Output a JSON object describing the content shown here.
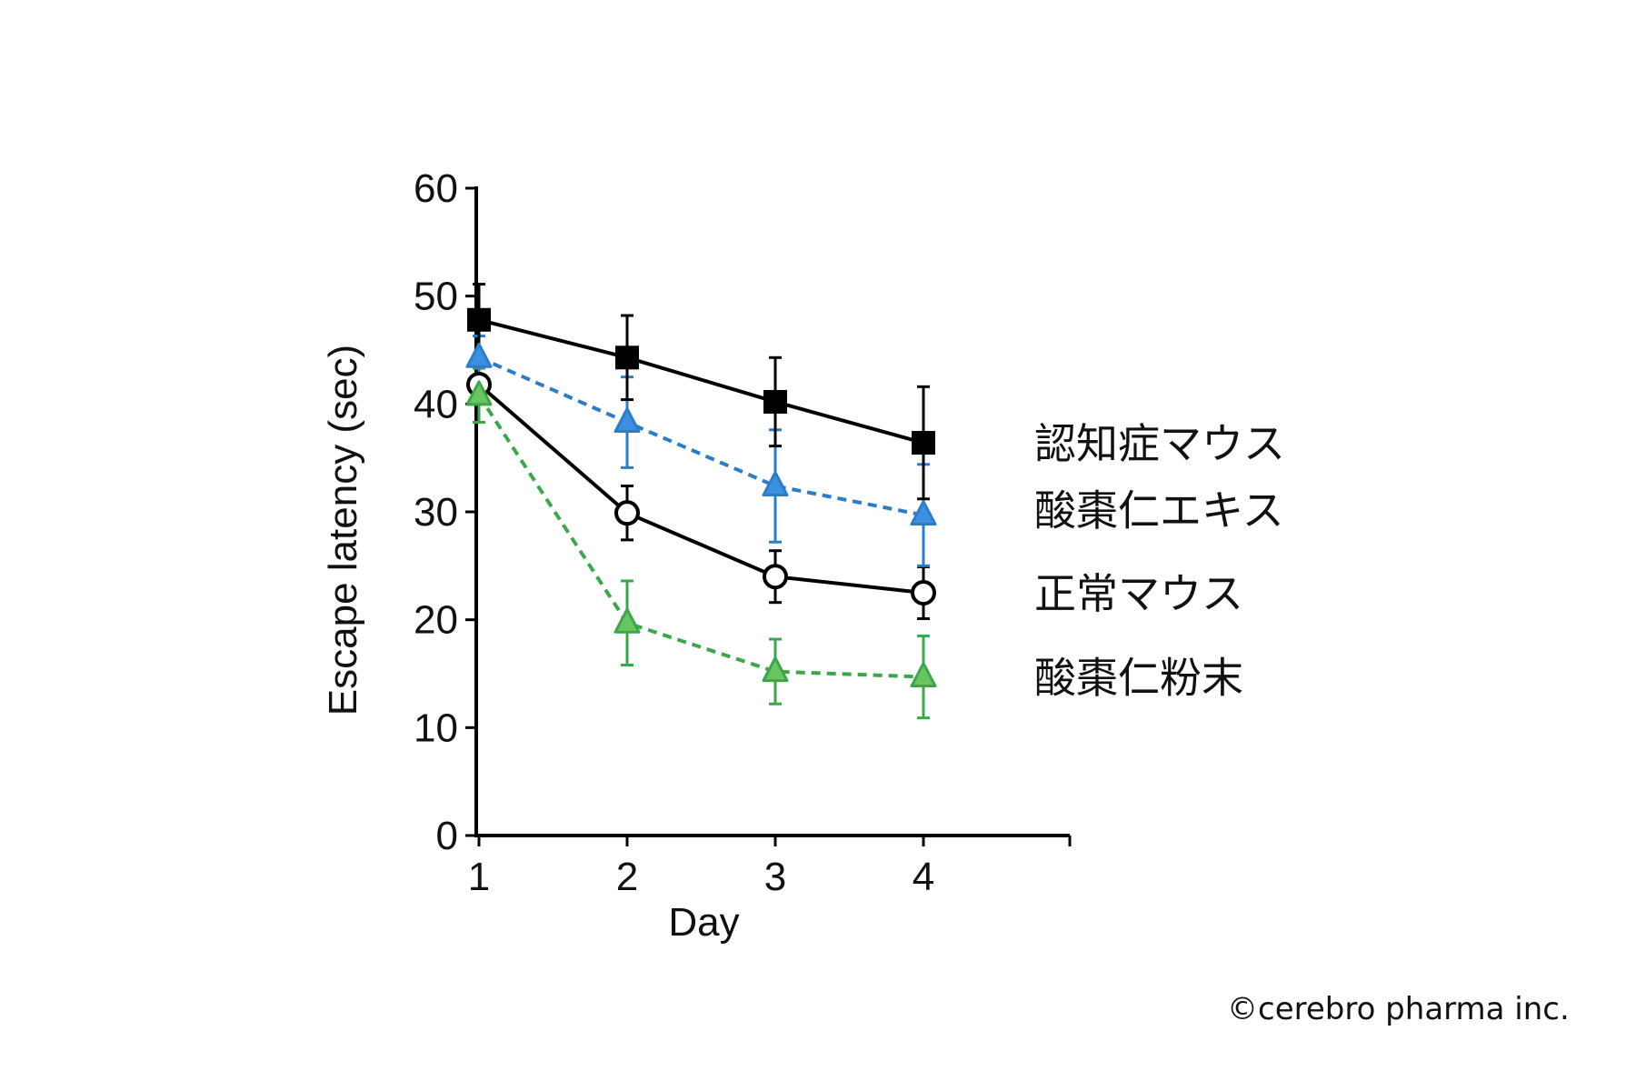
{
  "chart_data": {
    "type": "line",
    "title": "",
    "xlabel": "Day",
    "ylabel": "Escape latency (sec)",
    "categories": [
      "1",
      "2",
      "3",
      "4"
    ],
    "x": [
      1,
      2,
      3,
      4
    ],
    "ylim": [
      0,
      60
    ],
    "yticks": [
      0,
      10,
      20,
      30,
      40,
      50,
      60
    ],
    "ytick_labels": [
      "0",
      "10",
      "20",
      "30",
      "40",
      "50",
      "60"
    ],
    "xtick_labels": [
      "1",
      "2",
      "3",
      "4"
    ],
    "grid": false,
    "series": [
      {
        "name": "認知症マウス",
        "values": [
          47.8,
          44.3,
          40.2,
          36.4
        ],
        "errors": [
          3.3,
          3.9,
          4.1,
          5.2
        ],
        "color": "#000000",
        "marker": "filled-square",
        "line": "solid"
      },
      {
        "name": "酸棗仁エキス",
        "values": [
          44.3,
          38.3,
          32.4,
          29.7
        ],
        "errors": [
          2.0,
          4.2,
          5.2,
          4.7
        ],
        "color": "#2a7dc9",
        "marker": "triangle",
        "line": "dashed"
      },
      {
        "name": "正常マウス",
        "values": [
          41.8,
          29.9,
          24.0,
          22.5
        ],
        "errors": [
          1.8,
          2.5,
          2.4,
          2.4
        ],
        "color": "#000000",
        "marker": "open-circle",
        "line": "solid"
      },
      {
        "name": "酸棗仁粉末",
        "values": [
          40.8,
          19.7,
          15.2,
          14.7
        ],
        "errors": [
          2.5,
          3.9,
          3.0,
          3.8
        ],
        "color": "#3aa84a",
        "marker": "triangle",
        "line": "dashed"
      }
    ]
  },
  "copyright": "©cerebro pharma inc."
}
